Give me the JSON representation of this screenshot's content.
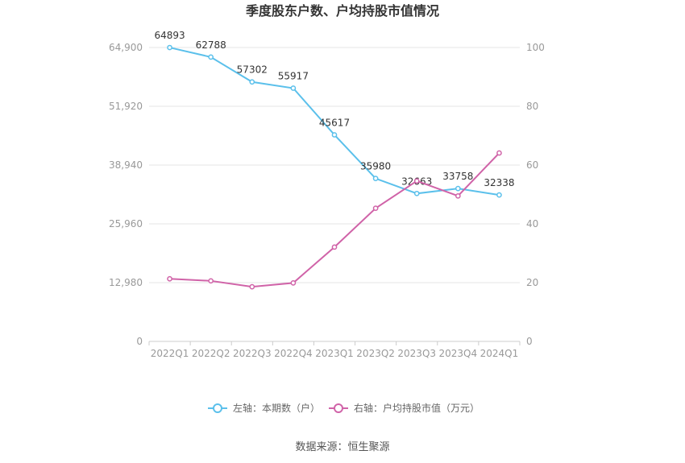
{
  "chart_data": {
    "type": "line",
    "title": "季度股东户数、户均持股市值情况",
    "categories": [
      "2022Q1",
      "2022Q2",
      "2022Q3",
      "2022Q4",
      "2023Q1",
      "2023Q2",
      "2023Q3",
      "2023Q4",
      "2024Q1"
    ],
    "left_axis": {
      "ticks": [
        "0",
        "12,980",
        "25,960",
        "38,940",
        "51,920",
        "64,900"
      ],
      "min": 0,
      "max": 64900
    },
    "right_axis": {
      "ticks": [
        "0",
        "20",
        "40",
        "60",
        "80",
        "100"
      ],
      "min": 0,
      "max": 100
    },
    "grid": true,
    "legend_position": "bottom",
    "series": [
      {
        "name": "左轴：本期数（户）",
        "axis": "left",
        "color": "#5bc0eb",
        "values": [
          64893,
          62788,
          57302,
          55917,
          45617,
          35980,
          32663,
          33758,
          32338
        ],
        "labels": [
          "64893",
          "62788",
          "57302",
          "55917",
          "45617",
          "35980",
          "32663",
          "33758",
          "32338"
        ]
      },
      {
        "name": "右轴：户均持股市值（万元）",
        "axis": "right",
        "color": "#d063a8",
        "values": [
          21.3,
          20.6,
          18.6,
          19.9,
          32.1,
          45.3,
          54.6,
          49.5,
          64.1
        ]
      }
    ]
  },
  "source": "数据来源：恒生聚源"
}
